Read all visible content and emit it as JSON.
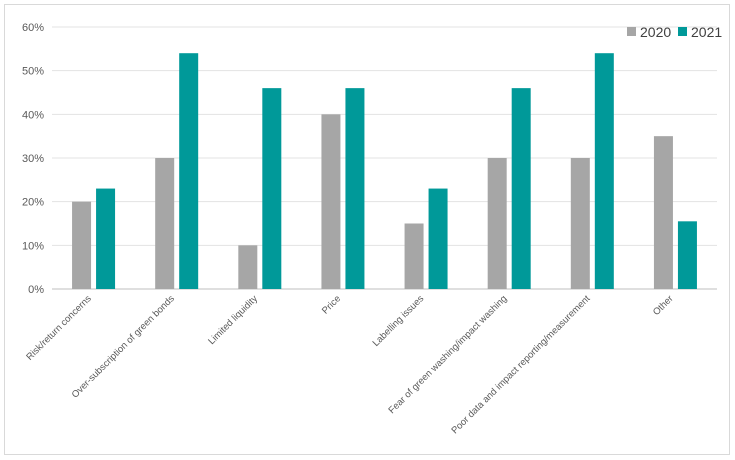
{
  "chart_data": {
    "type": "bar",
    "title": "",
    "xlabel": "",
    "ylabel": "",
    "ylim": [
      0,
      60
    ],
    "yticks": [
      0,
      10,
      20,
      30,
      40,
      50,
      60
    ],
    "ytick_suffix": "%",
    "grid": true,
    "legend_position": "top-right",
    "categories": [
      "Risk/return concerns",
      "Over-subscription of green bonds",
      "Limited liquidity",
      "Price",
      "Labelling issues",
      "Fear of green washing/impact washing",
      "Poor data and impact reporting/measurement",
      "Other"
    ],
    "series": [
      {
        "name": "2020",
        "color": "#a6a6a6",
        "values": [
          20,
          30,
          10,
          40,
          15,
          30,
          30,
          35
        ]
      },
      {
        "name": "2021",
        "color": "#009999",
        "values": [
          23,
          54,
          46,
          46,
          23,
          46,
          54,
          15.5
        ]
      }
    ]
  }
}
